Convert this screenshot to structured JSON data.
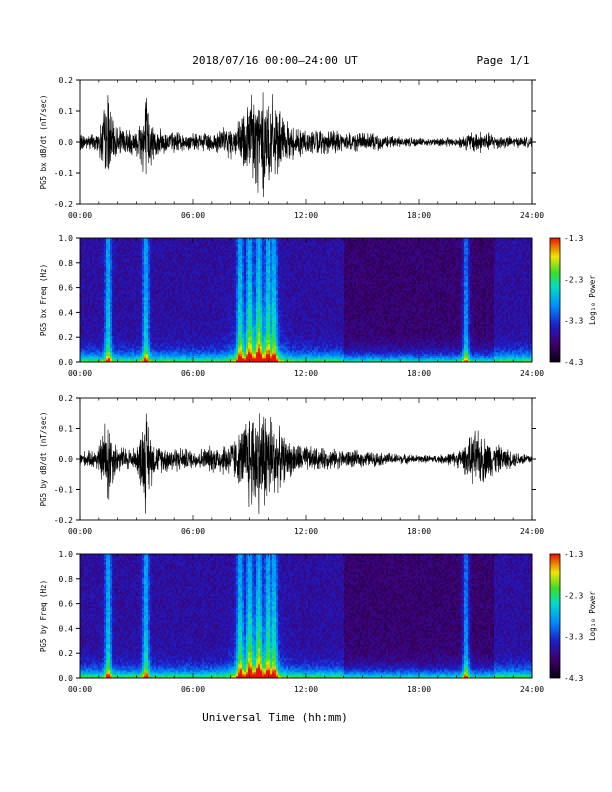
{
  "header": {
    "title": "2018/07/16  00:00–24:00 UT",
    "page": "Page 1/1"
  },
  "colors": {
    "waveform": "#000000",
    "spectrogram_palette": "rainbow-dark (black→purple→blue→cyan→green→yellow→red)"
  },
  "chart_data": [
    {
      "type": "line",
      "ylabel": "PG5 bx dB/dt (nT/sec)",
      "xlim": [
        "00:00",
        "24:00"
      ],
      "ylim": [
        -0.2,
        0.2
      ],
      "xticks": [
        "00:00",
        "06:00",
        "12:00",
        "18:00",
        "24:00"
      ],
      "yticks": [
        "-0.2",
        "-0.1",
        "0.0",
        "0.1",
        "0.2"
      ],
      "envelope": {
        "x_hours": [
          0,
          0.5,
          1,
          1.5,
          1.7,
          2,
          3,
          3.5,
          3.7,
          4,
          5,
          6,
          7,
          8,
          8.5,
          9,
          9.5,
          10,
          10.5,
          11,
          12,
          13,
          14,
          15,
          16,
          17,
          18,
          19,
          20,
          20.5,
          21,
          22,
          23,
          24
        ],
        "amplitude": [
          0.03,
          0.03,
          0.04,
          0.2,
          0.08,
          0.06,
          0.05,
          0.2,
          0.1,
          0.05,
          0.04,
          0.03,
          0.04,
          0.06,
          0.08,
          0.2,
          0.2,
          0.2,
          0.12,
          0.07,
          0.05,
          0.045,
          0.04,
          0.035,
          0.03,
          0.02,
          0.015,
          0.015,
          0.02,
          0.03,
          0.045,
          0.03,
          0.02,
          0.02
        ]
      }
    },
    {
      "type": "heatmap",
      "ylabel": "PG5 bx Freq (Hz)",
      "xlim": [
        "00:00",
        "24:00"
      ],
      "ylim": [
        0.0,
        1.0
      ],
      "xticks": [
        "00:00",
        "06:00",
        "12:00",
        "18:00",
        "24:00"
      ],
      "yticks": [
        "0.0",
        "0.2",
        "0.4",
        "0.6",
        "0.8",
        "1.0"
      ],
      "colorbar": {
        "label": "Log₁₀ Power",
        "range": [
          -4.3,
          -1.3
        ],
        "ticks": [
          "-1.3",
          "-2.3",
          "-3.3",
          "-4.3"
        ]
      },
      "activity_hours": [
        1.5,
        3.5,
        8.5,
        9,
        9.5,
        10,
        10.3,
        20.5
      ]
    },
    {
      "type": "line",
      "ylabel": "PG5 by dB/dt (nT/sec)",
      "xlim": [
        "00:00",
        "24:00"
      ],
      "ylim": [
        -0.2,
        0.2
      ],
      "xticks": [
        "00:00",
        "06:00",
        "12:00",
        "18:00",
        "24:00"
      ],
      "yticks": [
        "-0.2",
        "-0.1",
        "0.0",
        "0.1",
        "0.2"
      ],
      "envelope": {
        "x_hours": [
          0,
          0.5,
          1,
          1.5,
          1.7,
          2,
          3,
          3.5,
          3.7,
          4,
          5,
          6,
          7,
          8,
          8.5,
          9,
          9.5,
          10,
          10.5,
          11,
          12,
          13,
          14,
          15,
          16,
          17,
          18,
          19,
          20,
          20.5,
          21,
          22,
          23,
          24
        ],
        "amplitude": [
          0.03,
          0.03,
          0.05,
          0.2,
          0.1,
          0.05,
          0.04,
          0.2,
          0.12,
          0.05,
          0.05,
          0.035,
          0.05,
          0.07,
          0.1,
          0.2,
          0.2,
          0.2,
          0.12,
          0.07,
          0.05,
          0.04,
          0.035,
          0.03,
          0.025,
          0.02,
          0.015,
          0.015,
          0.03,
          0.06,
          0.11,
          0.06,
          0.03,
          0.02
        ]
      }
    },
    {
      "type": "heatmap",
      "ylabel": "PG5 by Freq (Hz)",
      "xlim": [
        "00:00",
        "24:00"
      ],
      "ylim": [
        0.0,
        1.0
      ],
      "xticks": [
        "00:00",
        "06:00",
        "12:00",
        "18:00",
        "24:00"
      ],
      "yticks": [
        "0.0",
        "0.2",
        "0.4",
        "0.6",
        "0.8",
        "1.0"
      ],
      "colorbar": {
        "label": "Log₁₀ Power",
        "range": [
          -4.3,
          -1.3
        ],
        "ticks": [
          "-1.3",
          "-2.3",
          "-3.3",
          "-4.3"
        ]
      },
      "activity_hours": [
        1.5,
        3.5,
        8.5,
        9,
        9.5,
        10,
        10.3,
        20.5
      ]
    }
  ],
  "xlabel": "Universal Time (hh:mm)"
}
